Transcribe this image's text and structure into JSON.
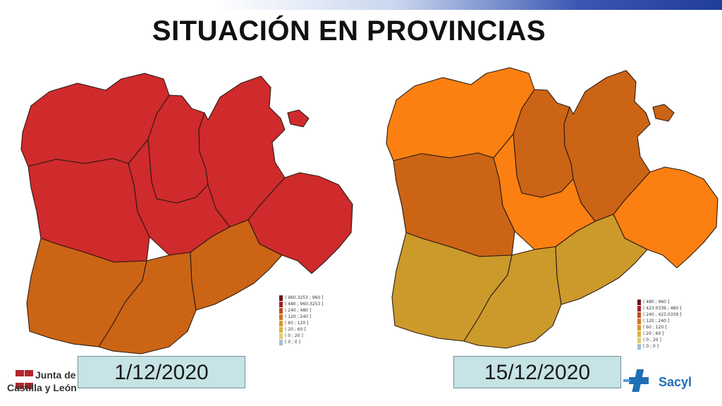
{
  "header": {
    "title": "SITUACIÓN EN PROVINCIAS"
  },
  "maps": [
    {
      "date": "1/12/2020",
      "provinces": {
        "leon": "#cf2a2c",
        "palencia": "#cf2a2c",
        "burgos": "#cf2a2c",
        "zamora": "#cf2a2c",
        "valladolid": "#cf2a2c",
        "soria": "#cf2a2c",
        "salamanca": "#cc6415",
        "avila": "#cc6415",
        "segovia": "#cc6415"
      },
      "legend": [
        "( 960.3253 ; 960 ]",
        "( 480 ; 960.3253 ]",
        "( 240 ; 480 ]",
        "( 120 ; 240 ]",
        "( 60 ; 120 ]",
        "( 20 ; 60 ]",
        "( 0 ; 20 ]",
        "[ 0 ; 0 ]"
      ]
    },
    {
      "date": "15/12/2020",
      "provinces": {
        "leon": "#fc8011",
        "palencia": "#cc6415",
        "burgos": "#cc6415",
        "zamora": "#cc6415",
        "valladolid": "#fc8011",
        "soria": "#fc8011",
        "salamanca": "#cc9a2b",
        "avila": "#cc9a2b",
        "segovia": "#cc9a2b"
      },
      "legend": [
        "( 480 ; 960 ]",
        "( 423.0339 ; 480 ]",
        "( 240 ; 423.0339 ]",
        "( 120 ; 240 ]",
        "( 60 ; 120 ]",
        "( 20 ; 60 ]",
        "( 0 ; 20 ]",
        "[ 0 ; 0 ]"
      ]
    }
  ],
  "legend_colors": [
    "#6b0f14",
    "#a81c22",
    "#c44b1a",
    "#d07524",
    "#d9962b",
    "#d8b441",
    "#e0cf6a",
    "#9fc0d4"
  ],
  "logos": {
    "left_line1": "Junta de",
    "left_line2": "Castilla y León",
    "right": "Sacyl"
  }
}
